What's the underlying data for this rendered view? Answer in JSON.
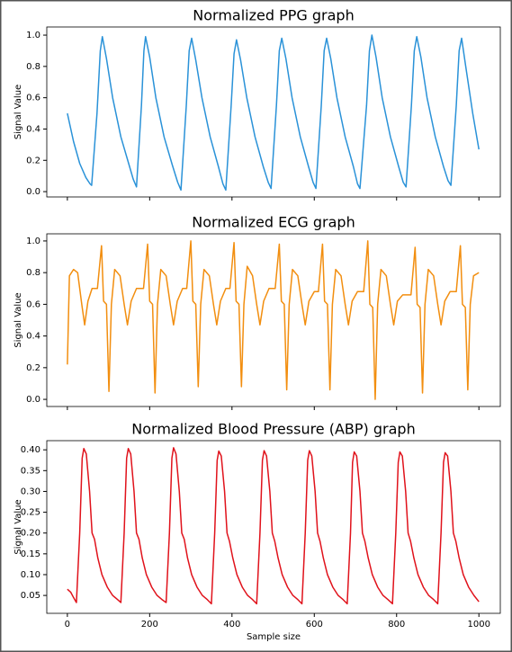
{
  "chart_data": [
    {
      "type": "line",
      "title": "Normalized PPG graph",
      "ylabel": "Signal Value",
      "color": "#2a92d8",
      "xlim": [
        -50,
        1052
      ],
      "ylim": [
        -0.034,
        1.052
      ],
      "xticks": [
        0,
        200,
        400,
        600,
        800,
        1000
      ],
      "show_xtick_labels": false,
      "yticks": [
        {
          "value": 0,
          "label": "0.0"
        },
        0.2,
        0.4,
        0.6,
        0.8,
        {
          "value": 1,
          "label": "1.0"
        }
      ],
      "x": [
        0,
        15,
        30,
        45,
        55,
        59,
        72,
        80,
        85,
        95,
        110,
        130,
        150,
        160,
        168,
        180,
        186,
        190,
        200,
        215,
        235,
        255,
        268,
        276,
        289,
        296,
        302,
        312,
        327,
        347,
        367,
        378,
        385,
        398,
        405,
        411,
        421,
        436,
        456,
        476,
        488,
        495,
        508,
        515,
        521,
        531,
        546,
        566,
        586,
        597,
        604,
        617,
        624,
        630,
        640,
        655,
        675,
        695,
        705,
        711,
        727,
        734,
        740,
        750,
        765,
        785,
        805,
        816,
        823,
        836,
        843,
        849,
        859,
        874,
        894,
        914,
        925,
        932,
        945,
        952,
        958,
        968,
        985,
        1000
      ],
      "values": [
        0.5,
        0.32,
        0.18,
        0.09,
        0.05,
        0.04,
        0.5,
        0.9,
        0.99,
        0.85,
        0.6,
        0.35,
        0.17,
        0.08,
        0.03,
        0.55,
        0.9,
        0.99,
        0.86,
        0.6,
        0.35,
        0.17,
        0.06,
        0.01,
        0.55,
        0.9,
        0.98,
        0.84,
        0.6,
        0.35,
        0.16,
        0.05,
        0.01,
        0.55,
        0.88,
        0.97,
        0.84,
        0.6,
        0.35,
        0.16,
        0.06,
        0.02,
        0.55,
        0.9,
        0.98,
        0.85,
        0.6,
        0.35,
        0.16,
        0.06,
        0.02,
        0.55,
        0.9,
        0.98,
        0.85,
        0.6,
        0.35,
        0.16,
        0.05,
        0.02,
        0.55,
        0.9,
        1.0,
        0.86,
        0.6,
        0.35,
        0.16,
        0.06,
        0.03,
        0.55,
        0.9,
        0.99,
        0.86,
        0.6,
        0.35,
        0.16,
        0.07,
        0.04,
        0.55,
        0.9,
        0.98,
        0.8,
        0.5,
        0.27
      ]
    },
    {
      "type": "line",
      "title": "Normalized ECG graph",
      "ylabel": "Signal Value",
      "color": "#f28e0f",
      "xlim": [
        -50,
        1052
      ],
      "ylim": [
        -0.045,
        1.045
      ],
      "xticks": [
        0,
        200,
        400,
        600,
        800,
        1000
      ],
      "show_xtick_labels": false,
      "yticks": [
        {
          "value": 0,
          "label": "0.0"
        },
        0.2,
        0.4,
        0.6,
        0.8,
        {
          "value": 1,
          "label": "1.0"
        }
      ],
      "x": [
        0,
        5,
        15,
        25,
        35,
        42,
        50,
        60,
        73,
        83,
        88,
        95,
        101,
        107,
        115,
        128,
        138,
        146,
        155,
        168,
        185,
        195,
        200,
        207,
        213,
        219,
        227,
        240,
        250,
        258,
        267,
        280,
        290,
        300,
        305,
        312,
        318,
        324,
        332,
        345,
        355,
        363,
        372,
        385,
        395,
        405,
        410,
        417,
        423,
        429,
        437,
        450,
        460,
        468,
        477,
        490,
        505,
        515,
        520,
        527,
        533,
        539,
        547,
        560,
        570,
        578,
        587,
        600,
        610,
        620,
        625,
        632,
        638,
        644,
        652,
        665,
        675,
        683,
        692,
        705,
        720,
        730,
        735,
        742,
        748,
        754,
        762,
        775,
        785,
        793,
        802,
        815,
        835,
        845,
        850,
        857,
        863,
        869,
        877,
        890,
        900,
        908,
        917,
        930,
        945,
        955,
        960,
        967,
        973,
        979,
        987,
        1000
      ],
      "values": [
        0.22,
        0.78,
        0.82,
        0.8,
        0.6,
        0.47,
        0.62,
        0.7,
        0.7,
        0.97,
        0.62,
        0.6,
        0.05,
        0.6,
        0.82,
        0.78,
        0.6,
        0.47,
        0.62,
        0.7,
        0.7,
        0.98,
        0.62,
        0.6,
        0.04,
        0.6,
        0.82,
        0.78,
        0.6,
        0.47,
        0.62,
        0.7,
        0.7,
        1.0,
        0.62,
        0.6,
        0.08,
        0.6,
        0.82,
        0.78,
        0.6,
        0.47,
        0.62,
        0.7,
        0.7,
        0.99,
        0.62,
        0.6,
        0.08,
        0.6,
        0.84,
        0.78,
        0.6,
        0.47,
        0.62,
        0.7,
        0.7,
        0.98,
        0.62,
        0.6,
        0.06,
        0.6,
        0.82,
        0.78,
        0.6,
        0.47,
        0.62,
        0.68,
        0.68,
        0.98,
        0.62,
        0.6,
        0.06,
        0.6,
        0.82,
        0.78,
        0.6,
        0.47,
        0.62,
        0.68,
        0.68,
        1.0,
        0.6,
        0.58,
        0.0,
        0.6,
        0.82,
        0.78,
        0.6,
        0.47,
        0.62,
        0.66,
        0.66,
        0.96,
        0.6,
        0.58,
        0.04,
        0.6,
        0.82,
        0.78,
        0.6,
        0.47,
        0.62,
        0.68,
        0.68,
        0.97,
        0.6,
        0.58,
        0.06,
        0.6,
        0.78,
        0.8
      ]
    },
    {
      "type": "line",
      "title": "Normalized Blood Pressure (ABP) graph",
      "ylabel": "Signal Value",
      "xlabel": "Sample size",
      "color": "#e0121b",
      "xlim": [
        -50,
        1052
      ],
      "ylim": [
        0.007,
        0.422
      ],
      "xticks": [
        0,
        200,
        400,
        600,
        800,
        1000
      ],
      "show_xtick_labels": true,
      "yticks": [
        0.05,
        {
          "value": 0.1,
          "label": "0.10"
        },
        0.15,
        {
          "value": 0.2,
          "label": "0.20"
        },
        0.25,
        {
          "value": 0.3,
          "label": "0.30"
        },
        0.35,
        {
          "value": 0.4,
          "label": "0.40"
        }
      ],
      "x": [
        0,
        8,
        15,
        22,
        30,
        36,
        40,
        46,
        54,
        60,
        66,
        74,
        84,
        97,
        110,
        122,
        130,
        138,
        144,
        148,
        154,
        162,
        168,
        174,
        182,
        192,
        205,
        218,
        230,
        240,
        248,
        254,
        258,
        264,
        272,
        278,
        284,
        292,
        302,
        315,
        328,
        340,
        350,
        358,
        364,
        368,
        374,
        382,
        388,
        394,
        402,
        412,
        425,
        438,
        450,
        460,
        468,
        474,
        478,
        484,
        492,
        498,
        504,
        512,
        522,
        535,
        548,
        560,
        570,
        578,
        584,
        588,
        594,
        602,
        608,
        614,
        622,
        632,
        645,
        658,
        670,
        680,
        688,
        693,
        697,
        703,
        711,
        717,
        723,
        731,
        741,
        754,
        767,
        779,
        790,
        798,
        804,
        808,
        814,
        822,
        828,
        834,
        842,
        852,
        865,
        878,
        890,
        900,
        908,
        914,
        918,
        924,
        932,
        938,
        944,
        952,
        962,
        975,
        988,
        1000
      ],
      "values": [
        0.065,
        0.058,
        0.045,
        0.033,
        0.2,
        0.38,
        0.403,
        0.39,
        0.3,
        0.2,
        0.185,
        0.14,
        0.1,
        0.07,
        0.05,
        0.04,
        0.033,
        0.2,
        0.38,
        0.403,
        0.39,
        0.3,
        0.2,
        0.185,
        0.14,
        0.1,
        0.07,
        0.05,
        0.04,
        0.033,
        0.2,
        0.38,
        0.405,
        0.39,
        0.3,
        0.2,
        0.185,
        0.14,
        0.1,
        0.07,
        0.05,
        0.04,
        0.03,
        0.2,
        0.375,
        0.397,
        0.385,
        0.3,
        0.2,
        0.18,
        0.14,
        0.1,
        0.07,
        0.05,
        0.04,
        0.03,
        0.2,
        0.375,
        0.398,
        0.385,
        0.3,
        0.2,
        0.18,
        0.14,
        0.1,
        0.07,
        0.05,
        0.04,
        0.03,
        0.2,
        0.375,
        0.398,
        0.385,
        0.3,
        0.2,
        0.18,
        0.14,
        0.1,
        0.07,
        0.05,
        0.04,
        0.03,
        0.2,
        0.37,
        0.395,
        0.385,
        0.3,
        0.2,
        0.18,
        0.14,
        0.1,
        0.07,
        0.05,
        0.04,
        0.03,
        0.2,
        0.37,
        0.395,
        0.385,
        0.3,
        0.2,
        0.18,
        0.14,
        0.1,
        0.07,
        0.05,
        0.04,
        0.03,
        0.2,
        0.37,
        0.393,
        0.385,
        0.3,
        0.2,
        0.18,
        0.14,
        0.1,
        0.07,
        0.05,
        0.035
      ]
    }
  ]
}
